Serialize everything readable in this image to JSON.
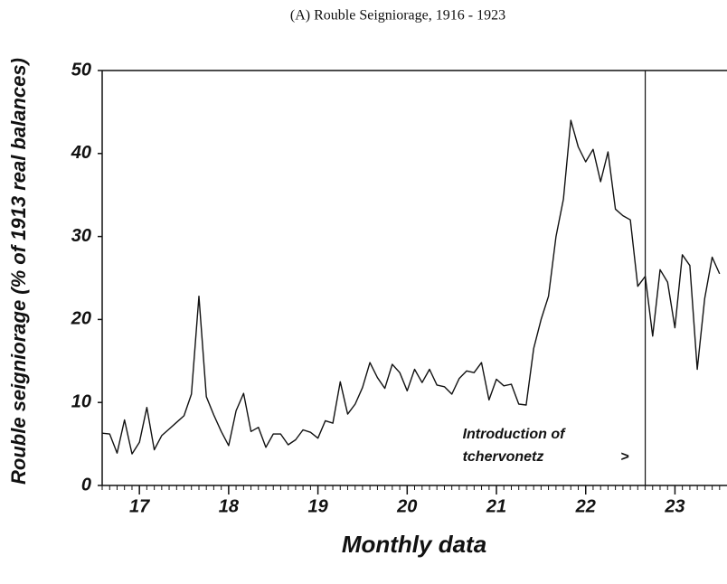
{
  "chart_data": {
    "type": "line",
    "title": "(A) Rouble Seigniorage, 1916 - 1923",
    "y_label": "Rouble seigniorage (% of 1913 real balances)",
    "x_label": "Monthly data",
    "annotation": [
      "Introduction of",
      "tchervonetz",
      ">"
    ],
    "reference_line": {
      "x": 22.667
    },
    "xlim": [
      16.583,
      23.583
    ],
    "ylim": [
      0,
      50
    ],
    "xticks": [
      {
        "value": 17,
        "label": "17"
      },
      {
        "value": 18,
        "label": "18"
      },
      {
        "value": 19,
        "label": "19"
      },
      {
        "value": 20,
        "label": "20"
      },
      {
        "value": 21,
        "label": "21"
      },
      {
        "value": 22,
        "label": "22"
      },
      {
        "value": 23,
        "label": "23"
      }
    ],
    "yticks": [
      0,
      10,
      20,
      30,
      40,
      50
    ],
    "x": [
      16.583,
      16.667,
      16.75,
      16.833,
      16.917,
      17,
      17.083,
      17.167,
      17.25,
      17.333,
      17.417,
      17.5,
      17.583,
      17.667,
      17.75,
      17.833,
      17.917,
      18,
      18.083,
      18.167,
      18.25,
      18.333,
      18.417,
      18.5,
      18.583,
      18.667,
      18.75,
      18.833,
      18.917,
      19,
      19.083,
      19.167,
      19.25,
      19.333,
      19.417,
      19.5,
      19.583,
      19.667,
      19.75,
      19.833,
      19.917,
      20,
      20.083,
      20.167,
      20.25,
      20.333,
      20.417,
      20.5,
      20.583,
      20.667,
      20.75,
      20.833,
      20.917,
      21,
      21.083,
      21.167,
      21.25,
      21.333,
      21.417,
      21.5,
      21.583,
      21.667,
      21.75,
      21.833,
      21.917,
      22,
      22.083,
      22.167,
      22.25,
      22.333,
      22.417,
      22.5,
      22.583,
      22.667,
      22.75,
      22.833,
      22.917,
      23,
      23.083,
      23.167,
      23.25,
      23.333,
      23.417,
      23.5
    ],
    "series": [
      {
        "name": "Rouble seigniorage",
        "color": "#111111",
        "values": [
          6.3,
          6.2,
          3.9,
          7.9,
          3.8,
          5.2,
          9.4,
          4.3,
          6.0,
          6.8,
          7.6,
          8.4,
          11.0,
          22.8,
          10.7,
          8.5,
          6.5,
          4.8,
          9.0,
          11.1,
          6.5,
          7.0,
          4.6,
          6.2,
          6.2,
          4.9,
          5.5,
          6.7,
          6.4,
          5.7,
          7.8,
          7.5,
          12.5,
          8.6,
          9.8,
          11.8,
          14.8,
          13.0,
          11.7,
          14.6,
          13.6,
          11.4,
          14.0,
          12.4,
          14.0,
          12.1,
          11.9,
          11.0,
          12.9,
          13.8,
          13.6,
          14.8,
          10.3,
          12.8,
          12.0,
          12.2,
          9.8,
          9.7,
          16.5,
          20.0,
          22.8,
          30.0,
          34.5,
          44.0,
          40.8,
          39.0,
          40.5,
          36.6,
          40.2,
          33.3,
          32.5,
          32.0,
          24.0,
          25.2,
          18.0,
          26.0,
          24.5,
          19.0,
          27.8,
          26.5,
          14.0,
          22.5,
          27.5,
          25.5
        ]
      }
    ]
  }
}
